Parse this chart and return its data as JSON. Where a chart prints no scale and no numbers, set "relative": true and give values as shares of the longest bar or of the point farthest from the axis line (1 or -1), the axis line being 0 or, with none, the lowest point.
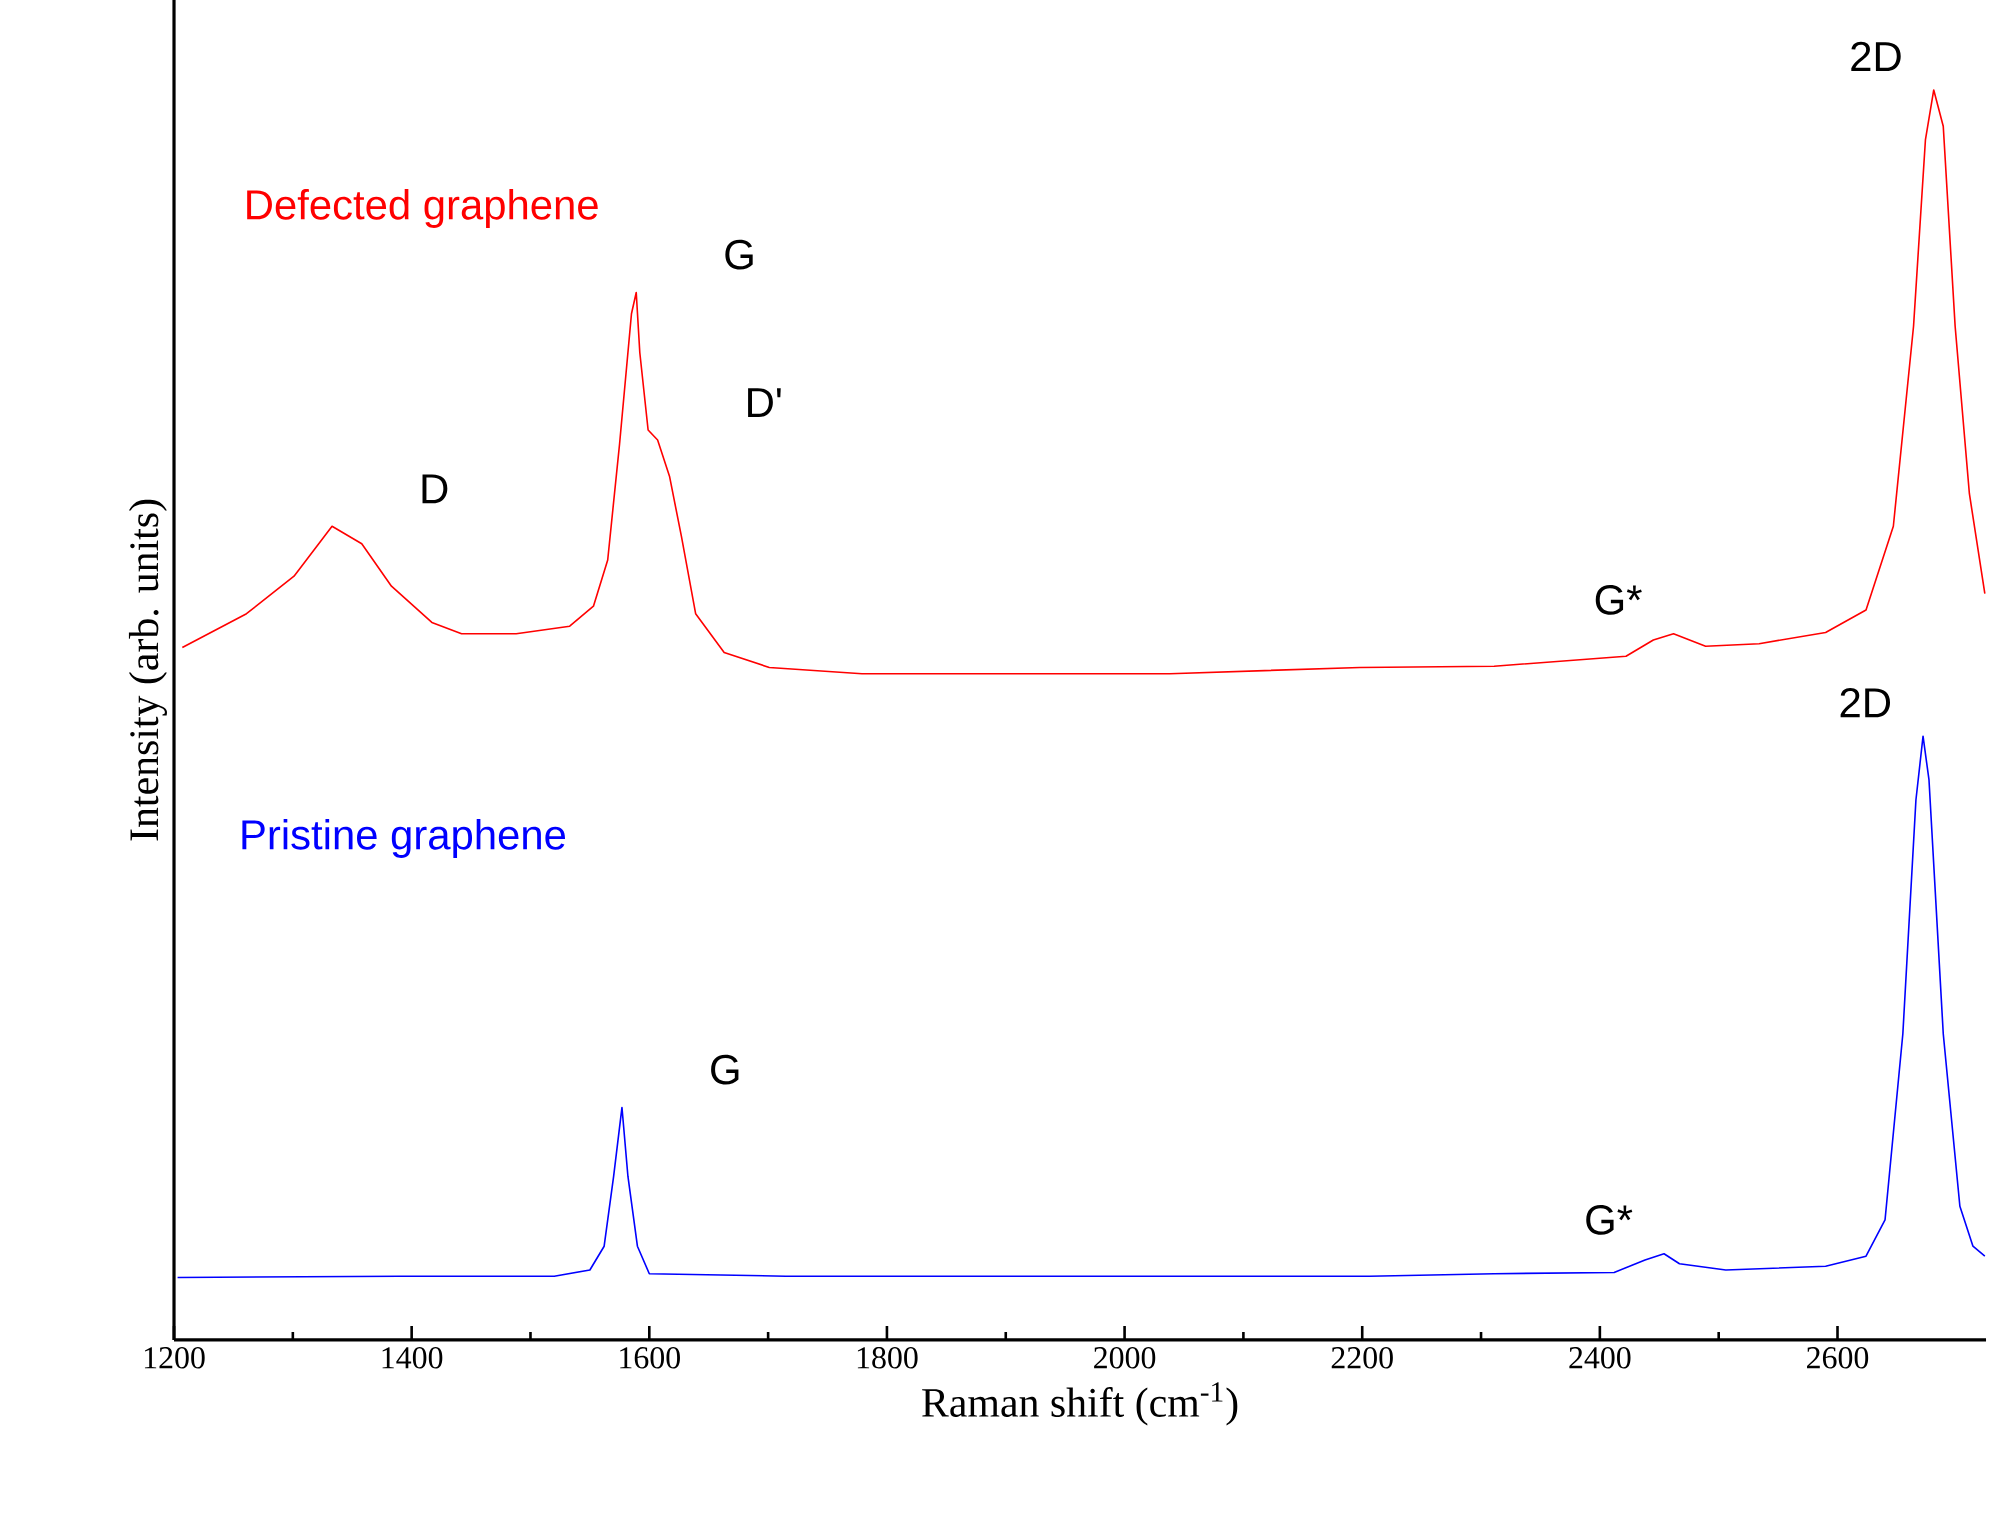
{
  "chart_data": {
    "type": "line",
    "xlabel": "Raman shift (cm$^{-1}$)",
    "ylabel": "Intensity (arb. units)",
    "relative": true,
    "xlim": [
      1200,
      2725
    ],
    "xticks": [
      1200,
      1400,
      1600,
      1800,
      2000,
      2200,
      2400,
      2600
    ],
    "series": [
      {
        "name": "Defected graphene",
        "color": "#ff0000",
        "x": [
          1207,
          1261,
          1301,
          1333,
          1358,
          1383,
          1417,
          1442,
          1488,
          1533,
          1553,
          1565,
          1575,
          1585,
          1589,
          1592,
          1599,
          1607,
          1617,
          1627,
          1639,
          1663,
          1701,
          1779,
          1908,
          2038,
          2198,
          2311,
          2422,
          2445,
          2462,
          2489,
          2534,
          2590,
          2624,
          2647,
          2664,
          2674,
          2681,
          2689,
          2699,
          2711,
          2724
        ],
        "values": [
          0.554,
          0.581,
          0.611,
          0.651,
          0.637,
          0.603,
          0.574,
          0.565,
          0.565,
          0.571,
          0.587,
          0.624,
          0.717,
          0.821,
          0.838,
          0.79,
          0.728,
          0.72,
          0.691,
          0.643,
          0.581,
          0.55,
          0.538,
          0.533,
          0.533,
          0.533,
          0.538,
          0.539,
          0.547,
          0.56,
          0.565,
          0.555,
          0.557,
          0.566,
          0.584,
          0.651,
          0.811,
          0.96,
          1.0,
          0.971,
          0.811,
          0.677,
          0.597
        ]
      },
      {
        "name": "Pristine graphene",
        "color": "#0000ff",
        "x": [
          1203,
          1390,
          1520,
          1550,
          1562,
          1570,
          1577,
          1582,
          1590,
          1600,
          1715,
          1844,
          2038,
          2206,
          2311,
          2412,
          2438,
          2454,
          2467,
          2506,
          2590,
          2624,
          2640,
          2655,
          2666,
          2672,
          2677,
          2689,
          2703,
          2714,
          2724
        ],
        "values": [
          0.05,
          0.051,
          0.051,
          0.056,
          0.075,
          0.131,
          0.186,
          0.131,
          0.075,
          0.053,
          0.051,
          0.051,
          0.051,
          0.051,
          0.053,
          0.054,
          0.064,
          0.069,
          0.061,
          0.056,
          0.059,
          0.067,
          0.096,
          0.245,
          0.432,
          0.483,
          0.448,
          0.245,
          0.107,
          0.075,
          0.067
        ]
      }
    ],
    "annotations": [
      {
        "text": "D",
        "x": 1333,
        "y": 0.651
      },
      {
        "text": "G",
        "x": 1589,
        "y": 0.838
      },
      {
        "text": "D'",
        "x": 1607,
        "y": 0.72
      },
      {
        "text": "G*",
        "x": 2462,
        "y": 0.565
      },
      {
        "text": "2D",
        "x": 2681,
        "y": 1.0
      },
      {
        "text": "G",
        "x": 1577,
        "y": 0.186
      },
      {
        "text": "G*",
        "x": 2454,
        "y": 0.069
      },
      {
        "text": "2D",
        "x": 2672,
        "y": 0.483
      }
    ]
  }
}
